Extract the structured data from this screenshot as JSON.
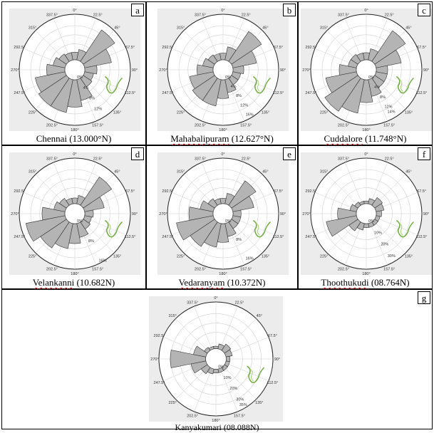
{
  "colors": {
    "petal_fill": "#b4b4b4",
    "petal_stroke": "#333333",
    "plot_bg": "#ececec",
    "grid": "#cfcfcf"
  },
  "chart_data": [
    {
      "type": "rose",
      "panel": "a",
      "caption": "Chennai (13.000°N)",
      "caption_pre": "Chennai (13.000°N)",
      "caption_squig": "",
      "directions": [
        "0°",
        "22.5°",
        "45°",
        "67.5°",
        "90°",
        "112.5°",
        "135°",
        "157.5°",
        "180°",
        "202.5°",
        "225°",
        "247.5°",
        "270°",
        "292.5°",
        "315°",
        "337.5°"
      ],
      "values": [
        2.5,
        3.5,
        12.5,
        9,
        4,
        3,
        3.5,
        7,
        9,
        11,
        11,
        10,
        6,
        4,
        3,
        2.5
      ],
      "rmax": 15,
      "ring_labels": [
        "0%",
        "4%",
        "8%",
        "12%"
      ],
      "ring_values": [
        0,
        4,
        8,
        12
      ]
    },
    {
      "type": "rose",
      "panel": "b",
      "caption": "Mahabalipuram (12.627°N)",
      "caption_pre": "",
      "caption_squig": "Mahabalipuram",
      "caption_post": " (12.627°N)",
      "directions": [
        "0°",
        "22.5°",
        "45°",
        "67.5°",
        "90°",
        "112.5°",
        "135°",
        "157.5°",
        "180°",
        "202.5°",
        "225°",
        "247.5°",
        "270°",
        "292.5°",
        "315°",
        "337.5°"
      ],
      "values": [
        2.5,
        5,
        13.5,
        9,
        4,
        3,
        3,
        5,
        7,
        10,
        10,
        9,
        6,
        4,
        3,
        2.5
      ],
      "rmax": 17,
      "ring_labels": [
        "0%",
        "4%",
        "8%",
        "12%",
        "16%"
      ],
      "ring_values": [
        0,
        4,
        8,
        12,
        16
      ]
    },
    {
      "type": "rose",
      "panel": "c",
      "caption": "Cuddalore (11.748°N)",
      "caption_pre": "",
      "caption_squig": "Cuddalore",
      "caption_post": " (11.748°N)",
      "directions": [
        "0°",
        "22.5°",
        "45°",
        "67.5°",
        "90°",
        "112.5°",
        "135°",
        "157.5°",
        "180°",
        "202.5°",
        "225°",
        "247.5°",
        "270°",
        "292.5°",
        "315°",
        "337.5°"
      ],
      "values": [
        2.5,
        4,
        13,
        9,
        4,
        4,
        4,
        6,
        8,
        12,
        14,
        11,
        6,
        3,
        3,
        2.5
      ],
      "rmax": 16,
      "ring_labels": [
        "0%",
        "4%",
        "8%",
        "12%",
        "14%"
      ],
      "ring_values": [
        0,
        4,
        8,
        12,
        14
      ]
    },
    {
      "type": "rose",
      "panel": "d",
      "caption": "Velankanni (10.682N)",
      "caption_pre": "",
      "caption_squig": "Velankanni",
      "caption_post": " (10.682N)",
      "directions": [
        "0°",
        "22.5°",
        "45°",
        "67.5°",
        "90°",
        "112.5°",
        "135°",
        "157.5°",
        "180°",
        "202.5°",
        "225°",
        "247.5°",
        "270°",
        "292.5°",
        "315°",
        "337.5°"
      ],
      "values": [
        2,
        3,
        12,
        7,
        3,
        2.5,
        3,
        5,
        7,
        9,
        11,
        14,
        8,
        4,
        3,
        2
      ],
      "rmax": 16,
      "ring_labels": [
        "0%",
        "8%",
        "16%"
      ],
      "ring_values": [
        0,
        8,
        16
      ]
    },
    {
      "type": "rose",
      "panel": "e",
      "caption": "Vedaranyam (10.372N)",
      "caption_pre": "",
      "caption_squig": "Vedaranyam",
      "caption_post": " (10.372N)",
      "directions": [
        "0°",
        "22.5°",
        "45°",
        "67.5°",
        "90°",
        "112.5°",
        "135°",
        "157.5°",
        "180°",
        "202.5°",
        "225°",
        "247.5°",
        "270°",
        "292.5°",
        "315°",
        "337.5°"
      ],
      "values": [
        2,
        4,
        11,
        8,
        3,
        3,
        3,
        5,
        7,
        9,
        11,
        14,
        9,
        5,
        3,
        2
      ],
      "rmax": 17,
      "ring_labels": [
        "0%",
        "8%",
        "16%"
      ],
      "ring_values": [
        0,
        8,
        16
      ]
    },
    {
      "type": "rose",
      "panel": "f",
      "caption": "Thoothukudi (08.764N)",
      "caption_pre": "",
      "caption_squig": "Thoothukudi",
      "caption_post": " (08.764N)",
      "directions": [
        "0°",
        "22.5°",
        "45°",
        "67.5°",
        "90°",
        "112.5°",
        "135°",
        "157.5°",
        "180°",
        "202.5°",
        "225°",
        "247.5°",
        "270°",
        "292.5°",
        "315°",
        "337.5°"
      ],
      "values": [
        2,
        4,
        7,
        6,
        4,
        3,
        3,
        3,
        3,
        5,
        8,
        23,
        14,
        5,
        3,
        2
      ],
      "rmax": 34,
      "ring_labels": [
        "0%",
        "10%",
        "20%",
        "30%"
      ],
      "ring_values": [
        0,
        10,
        20,
        30
      ]
    },
    {
      "type": "rose",
      "panel": "g",
      "caption": "Kanyakumari (08.088N)",
      "caption_pre": "Kanyakumari (08.088N)",
      "caption_squig": "",
      "directions": [
        "0°",
        "22.5°",
        "45°",
        "67.5°",
        "90°",
        "112.5°",
        "135°",
        "157.5°",
        "180°",
        "202.5°",
        "225°",
        "247.5°",
        "270°",
        "292.5°",
        "315°",
        "337.5°"
      ],
      "values": [
        2,
        4,
        6,
        5,
        3,
        3,
        3,
        3,
        3,
        4,
        6,
        12,
        28,
        10,
        3,
        2
      ],
      "rmax": 37,
      "ring_labels": [
        "0%",
        "10%",
        "20%",
        "30%",
        "35%"
      ],
      "ring_values": [
        0,
        10,
        20,
        30,
        35
      ]
    }
  ]
}
